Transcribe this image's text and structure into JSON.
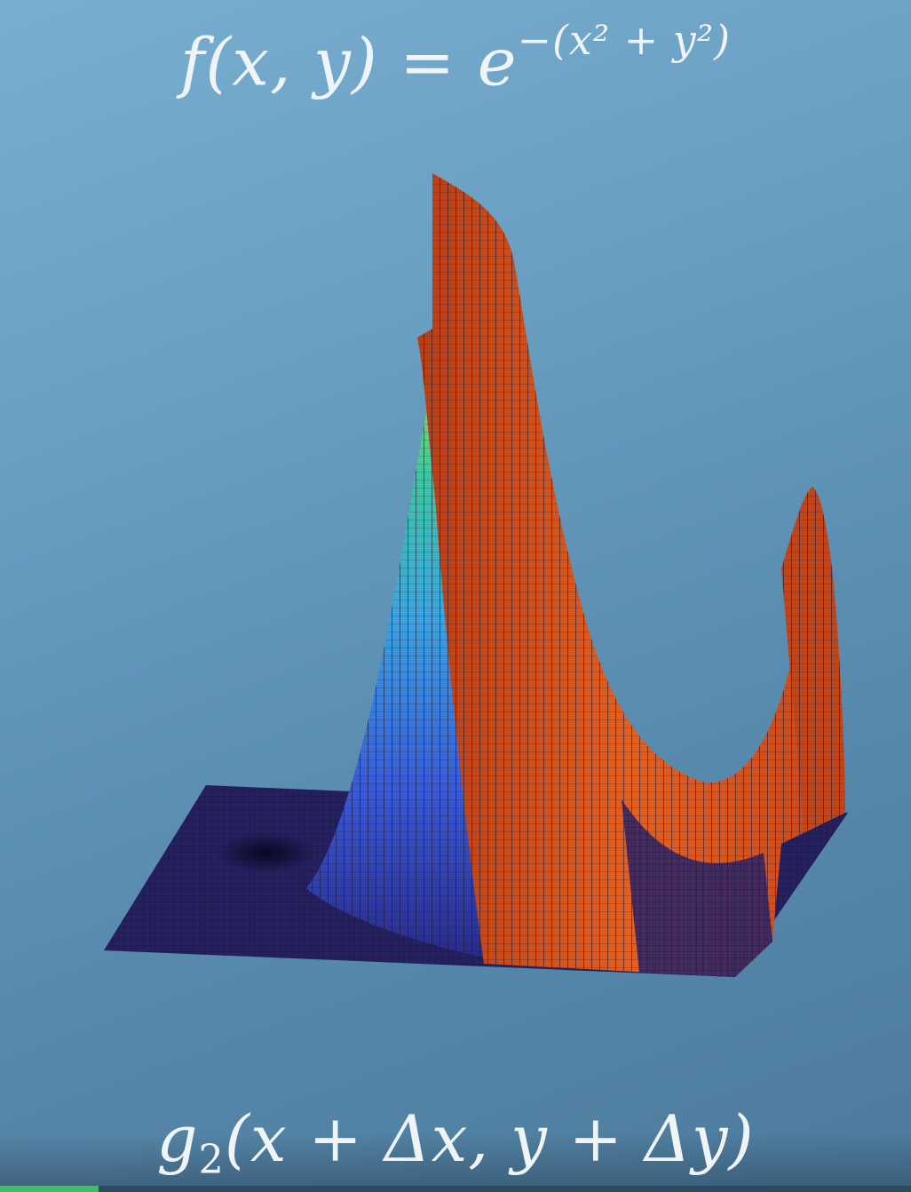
{
  "formulas": {
    "top": {
      "lhs": "f(x, y) = e",
      "exponent": "−(x² + y²)"
    },
    "bottom": {
      "name": "g",
      "subscript": "2",
      "args": "(x + Δx, y + Δy)"
    }
  },
  "video": {
    "progress_fraction": 0.108
  },
  "colors": {
    "background_top": "#79aed0",
    "background_bottom": "#4c7a9c",
    "plane": "#25205e",
    "orange_surface": "#d4501c",
    "mesh_line": "#1b1830",
    "progress": "#3fbf62"
  }
}
